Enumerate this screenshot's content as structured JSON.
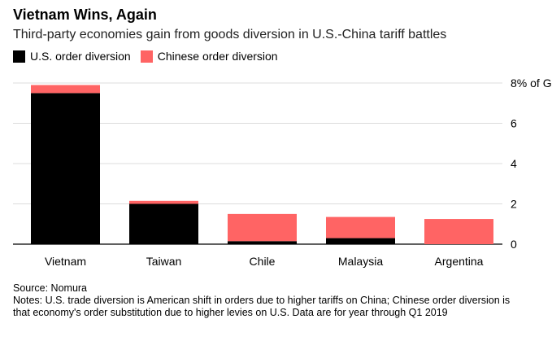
{
  "header": {
    "title": "Vietnam Wins, Again",
    "subtitle": "Third-party economies gain from goods diversion in U.S.-China tariff battles"
  },
  "chart_data": {
    "type": "bar",
    "stacked": true,
    "categories": [
      "Vietnam",
      "Taiwan",
      "Chile",
      "Malaysia",
      "Argentina"
    ],
    "series": [
      {
        "name": "U.S. order diversion",
        "color": "#000000",
        "values": [
          7.5,
          2.0,
          0.15,
          0.3,
          0.0
        ]
      },
      {
        "name": "Chinese order diversion",
        "color": "#ff6464",
        "values": [
          0.4,
          0.15,
          1.35,
          1.05,
          1.25
        ]
      }
    ],
    "ylim": [
      0,
      8
    ],
    "yticks": [
      0,
      2,
      4,
      6,
      8
    ],
    "ytick_labels": [
      "0",
      "2",
      "4",
      "6",
      "8% of GDP"
    ],
    "grid": true,
    "legend": "top-left"
  },
  "footer": {
    "source": "Source: Nomura",
    "notes": "Notes: U.S. trade diversion is American shift in orders due to higher tariffs on China; Chinese order diversion is that economy's order substitution due to higher levies on U.S. Data are for year through Q1 2019"
  }
}
